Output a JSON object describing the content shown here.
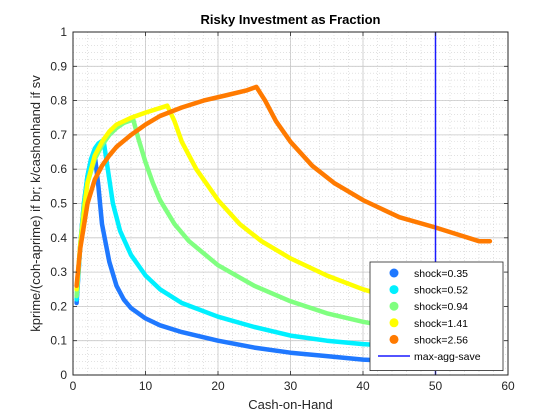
{
  "chart_data": {
    "type": "line",
    "title": "Risky Investment as Fraction",
    "xlabel": "Cash-on-Hand",
    "ylabel": "kprime/(coh-aprime) if br; k/cashonhand if sv",
    "xlim": [
      0,
      60
    ],
    "ylim": [
      0,
      1
    ],
    "xticks": [
      0,
      10,
      20,
      30,
      40,
      50,
      60
    ],
    "yticks": [
      0,
      0.1,
      0.2,
      0.3,
      0.4,
      0.5,
      0.6,
      0.7,
      0.8,
      0.9,
      1
    ],
    "grid": true,
    "minor_grid": true,
    "legend_position": "bottom-right",
    "series": [
      {
        "name": "shock=0.35",
        "color": "#1f78ff",
        "points": [
          [
            0.5,
            0.21
          ],
          [
            1.0,
            0.38
          ],
          [
            1.5,
            0.5
          ],
          [
            2.0,
            0.58
          ],
          [
            2.5,
            0.63
          ],
          [
            3.0,
            0.64
          ],
          [
            3.5,
            0.55
          ],
          [
            4,
            0.44
          ],
          [
            5,
            0.33
          ],
          [
            6,
            0.26
          ],
          [
            7,
            0.22
          ],
          [
            8,
            0.195
          ],
          [
            10,
            0.165
          ],
          [
            12,
            0.145
          ],
          [
            15,
            0.125
          ],
          [
            20,
            0.1
          ],
          [
            25,
            0.08
          ],
          [
            30,
            0.065
          ],
          [
            35,
            0.055
          ],
          [
            40,
            0.045
          ],
          [
            45,
            0.04
          ],
          [
            50,
            0.035
          ],
          [
            55,
            0.033
          ]
        ]
      },
      {
        "name": "shock=0.52",
        "color": "#00f0ff",
        "points": [
          [
            0.5,
            0.22
          ],
          [
            1.0,
            0.38
          ],
          [
            1.5,
            0.5
          ],
          [
            2.0,
            0.58
          ],
          [
            2.5,
            0.63
          ],
          [
            3.0,
            0.66
          ],
          [
            3.5,
            0.675
          ],
          [
            4.2,
            0.685
          ],
          [
            4.8,
            0.6
          ],
          [
            5.5,
            0.5
          ],
          [
            6.5,
            0.42
          ],
          [
            8,
            0.35
          ],
          [
            10,
            0.29
          ],
          [
            12,
            0.25
          ],
          [
            15,
            0.21
          ],
          [
            20,
            0.17
          ],
          [
            25,
            0.14
          ],
          [
            30,
            0.115
          ],
          [
            35,
            0.1
          ],
          [
            40,
            0.09
          ],
          [
            44,
            0.085
          ]
        ]
      },
      {
        "name": "shock=0.94",
        "color": "#80ff80",
        "points": [
          [
            0.5,
            0.23
          ],
          [
            1.0,
            0.38
          ],
          [
            1.5,
            0.49
          ],
          [
            2,
            0.56
          ],
          [
            3,
            0.63
          ],
          [
            4,
            0.67
          ],
          [
            5,
            0.7
          ],
          [
            6,
            0.72
          ],
          [
            7,
            0.735
          ],
          [
            8.3,
            0.745
          ],
          [
            9,
            0.69
          ],
          [
            10,
            0.62
          ],
          [
            11,
            0.56
          ],
          [
            12,
            0.51
          ],
          [
            14,
            0.44
          ],
          [
            16,
            0.39
          ],
          [
            20,
            0.32
          ],
          [
            25,
            0.26
          ],
          [
            30,
            0.215
          ],
          [
            35,
            0.18
          ],
          [
            40,
            0.155
          ],
          [
            44,
            0.14
          ]
        ]
      },
      {
        "name": "shock=1.41",
        "color": "#ffff00",
        "points": [
          [
            0.5,
            0.25
          ],
          [
            1,
            0.38
          ],
          [
            2,
            0.56
          ],
          [
            3,
            0.64
          ],
          [
            4,
            0.68
          ],
          [
            5,
            0.71
          ],
          [
            6,
            0.73
          ],
          [
            8,
            0.75
          ],
          [
            10,
            0.765
          ],
          [
            13,
            0.785
          ],
          [
            14,
            0.74
          ],
          [
            15,
            0.68
          ],
          [
            17,
            0.6
          ],
          [
            20,
            0.51
          ],
          [
            23,
            0.44
          ],
          [
            26,
            0.39
          ],
          [
            30,
            0.34
          ],
          [
            35,
            0.29
          ],
          [
            40,
            0.25
          ],
          [
            44,
            0.225
          ]
        ]
      },
      {
        "name": "shock=2.56",
        "color": "#ff7a00",
        "points": [
          [
            0.5,
            0.26
          ],
          [
            1,
            0.37
          ],
          [
            2,
            0.5
          ],
          [
            3,
            0.57
          ],
          [
            4,
            0.61
          ],
          [
            5,
            0.64
          ],
          [
            6,
            0.665
          ],
          [
            8,
            0.7
          ],
          [
            10,
            0.73
          ],
          [
            12,
            0.755
          ],
          [
            15,
            0.78
          ],
          [
            18,
            0.8
          ],
          [
            21,
            0.815
          ],
          [
            24,
            0.83
          ],
          [
            25.3,
            0.84
          ],
          [
            26.5,
            0.8
          ],
          [
            28,
            0.74
          ],
          [
            30,
            0.68
          ],
          [
            33,
            0.61
          ],
          [
            36,
            0.56
          ],
          [
            40,
            0.51
          ],
          [
            45,
            0.46
          ],
          [
            50,
            0.43
          ],
          [
            53,
            0.41
          ],
          [
            56,
            0.39
          ],
          [
            57.5,
            0.39
          ]
        ]
      }
    ],
    "vline": {
      "name": "max-agg-save",
      "x": 50,
      "color": "#1a1aff"
    }
  }
}
